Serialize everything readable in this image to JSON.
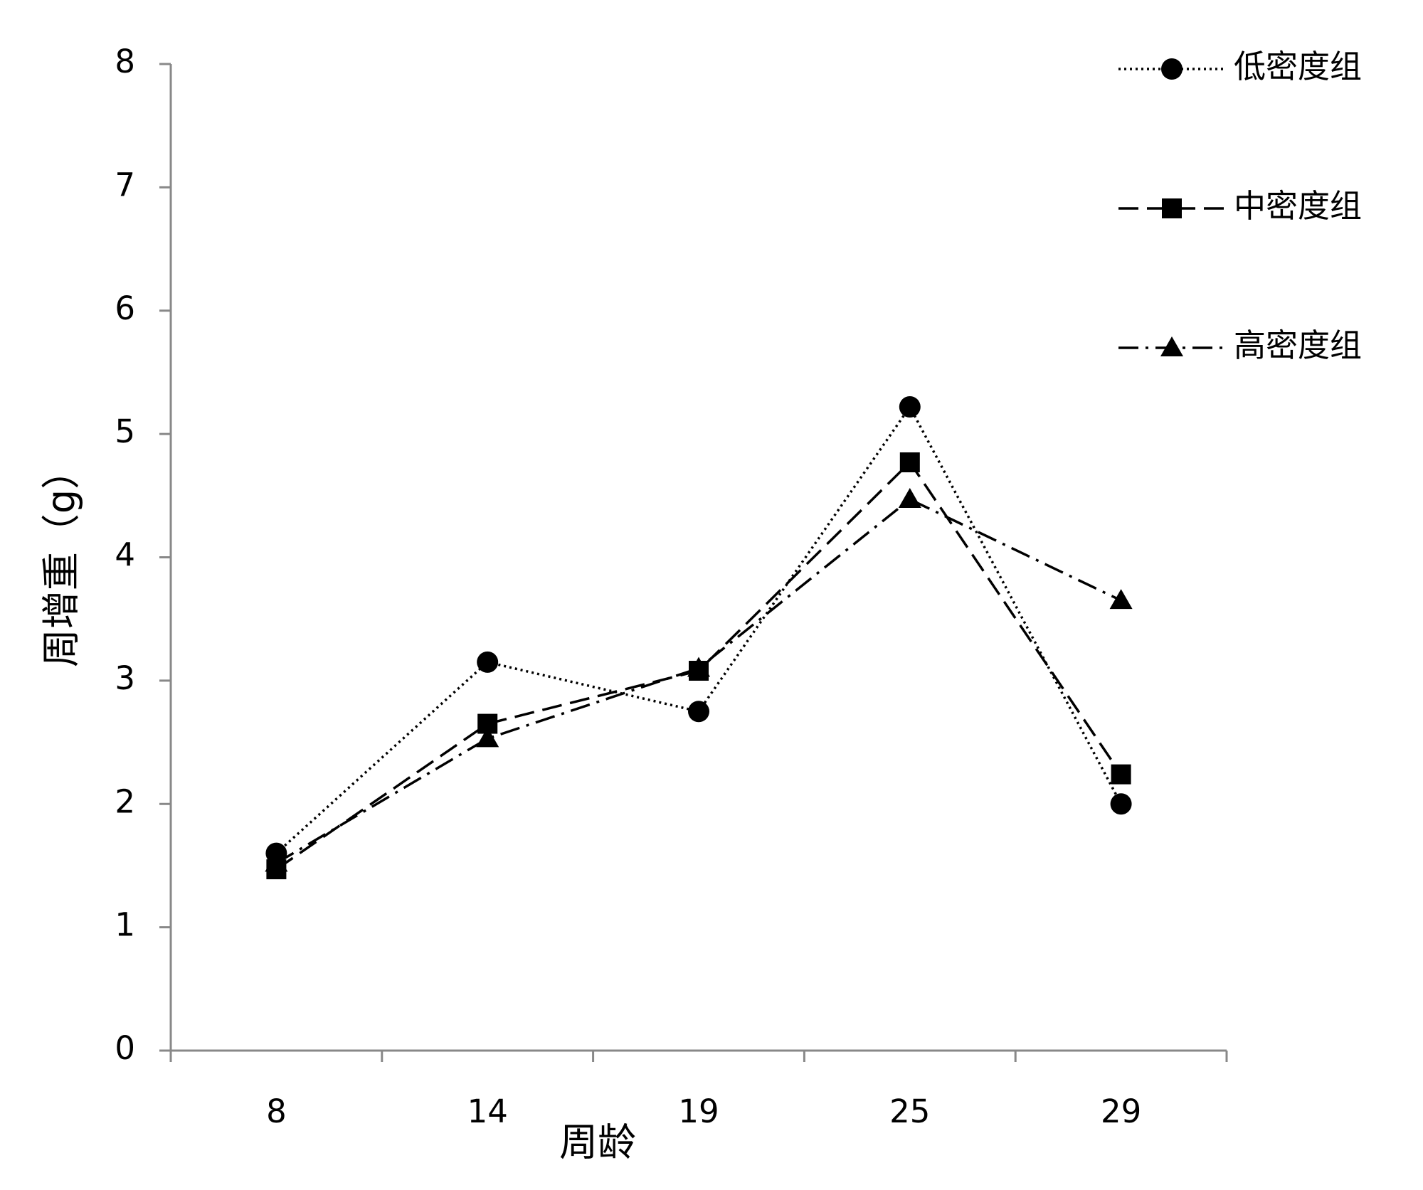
{
  "chart_data": {
    "type": "line",
    "x_label": "周龄",
    "y_label": "周增重（g）",
    "categories": [
      "8",
      "14",
      "19",
      "25",
      "29"
    ],
    "series": [
      {
        "name": "低密度组",
        "color": "#000000",
        "marker": "circle",
        "dash": "dotted",
        "values": [
          1.6,
          3.15,
          2.75,
          5.22,
          2.0
        ]
      },
      {
        "name": "中密度组",
        "color": "#000000",
        "marker": "square",
        "dash": "dashed",
        "values": [
          1.47,
          2.65,
          3.08,
          4.77,
          2.24
        ]
      },
      {
        "name": "高密度组",
        "color": "#000000",
        "marker": "triangle",
        "dash": "dashdot",
        "values": [
          1.52,
          2.53,
          3.1,
          4.47,
          3.65
        ]
      }
    ],
    "ylim": [
      0,
      8
    ],
    "yticks": [
      0,
      1,
      2,
      3,
      4,
      5,
      6,
      7,
      8
    ],
    "legend": "top-right"
  }
}
